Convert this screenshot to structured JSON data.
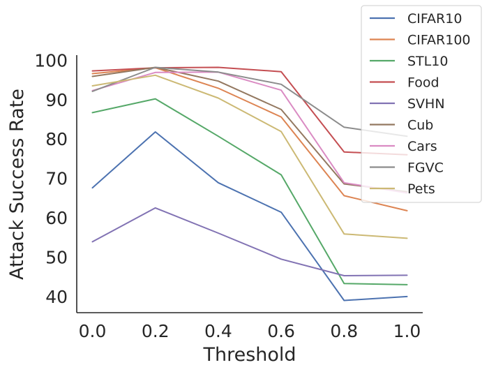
{
  "chart_data": {
    "type": "line",
    "title": "",
    "xlabel": "Threshold",
    "ylabel": "Attack Success Rate",
    "x": [
      0.0,
      0.2,
      0.4,
      0.6,
      0.8,
      1.0
    ],
    "x_tick_labels": [
      "0.0",
      "0.2",
      "0.4",
      "0.6",
      "0.8",
      "1.0"
    ],
    "y_ticks": [
      40,
      50,
      60,
      70,
      80,
      90,
      100
    ],
    "y_tick_labels": [
      "40",
      "50",
      "60",
      "70",
      "80",
      "90",
      "100"
    ],
    "xlim": [
      -0.05,
      1.05
    ],
    "ylim": [
      35.9,
      101.3
    ],
    "grid": false,
    "legend_position": "top-right",
    "series": [
      {
        "name": "CIFAR10",
        "color": "#4c72b0",
        "values": [
          67.6,
          81.8,
          68.9,
          61.4,
          39.0,
          40.0
        ]
      },
      {
        "name": "CIFAR100",
        "color": "#dd8452",
        "values": [
          96.6,
          98.1,
          92.9,
          85.6,
          65.6,
          61.8
        ]
      },
      {
        "name": "STL10",
        "color": "#55a868",
        "values": [
          86.7,
          90.2,
          80.7,
          70.9,
          43.3,
          43.0
        ]
      },
      {
        "name": "Food",
        "color": "#c44e52",
        "values": [
          97.3,
          98.1,
          98.2,
          97.1,
          76.7,
          76.0
        ]
      },
      {
        "name": "SVHN",
        "color": "#8172b3",
        "values": [
          53.9,
          62.5,
          56.1,
          49.5,
          45.3,
          45.4
        ]
      },
      {
        "name": "Cub",
        "color": "#937860",
        "values": [
          95.9,
          98.2,
          94.7,
          87.5,
          68.6,
          66.6
        ]
      },
      {
        "name": "Cars",
        "color": "#da8bc3",
        "values": [
          92.3,
          96.9,
          97.0,
          92.4,
          68.9,
          66.3
        ]
      },
      {
        "name": "FGVC",
        "color": "#8c8c8c",
        "values": [
          92.1,
          98.2,
          97.0,
          93.9,
          83.0,
          80.7
        ]
      },
      {
        "name": "Pets",
        "color": "#ccb974",
        "values": [
          93.5,
          96.2,
          90.4,
          81.9,
          55.9,
          54.8
        ]
      }
    ]
  }
}
